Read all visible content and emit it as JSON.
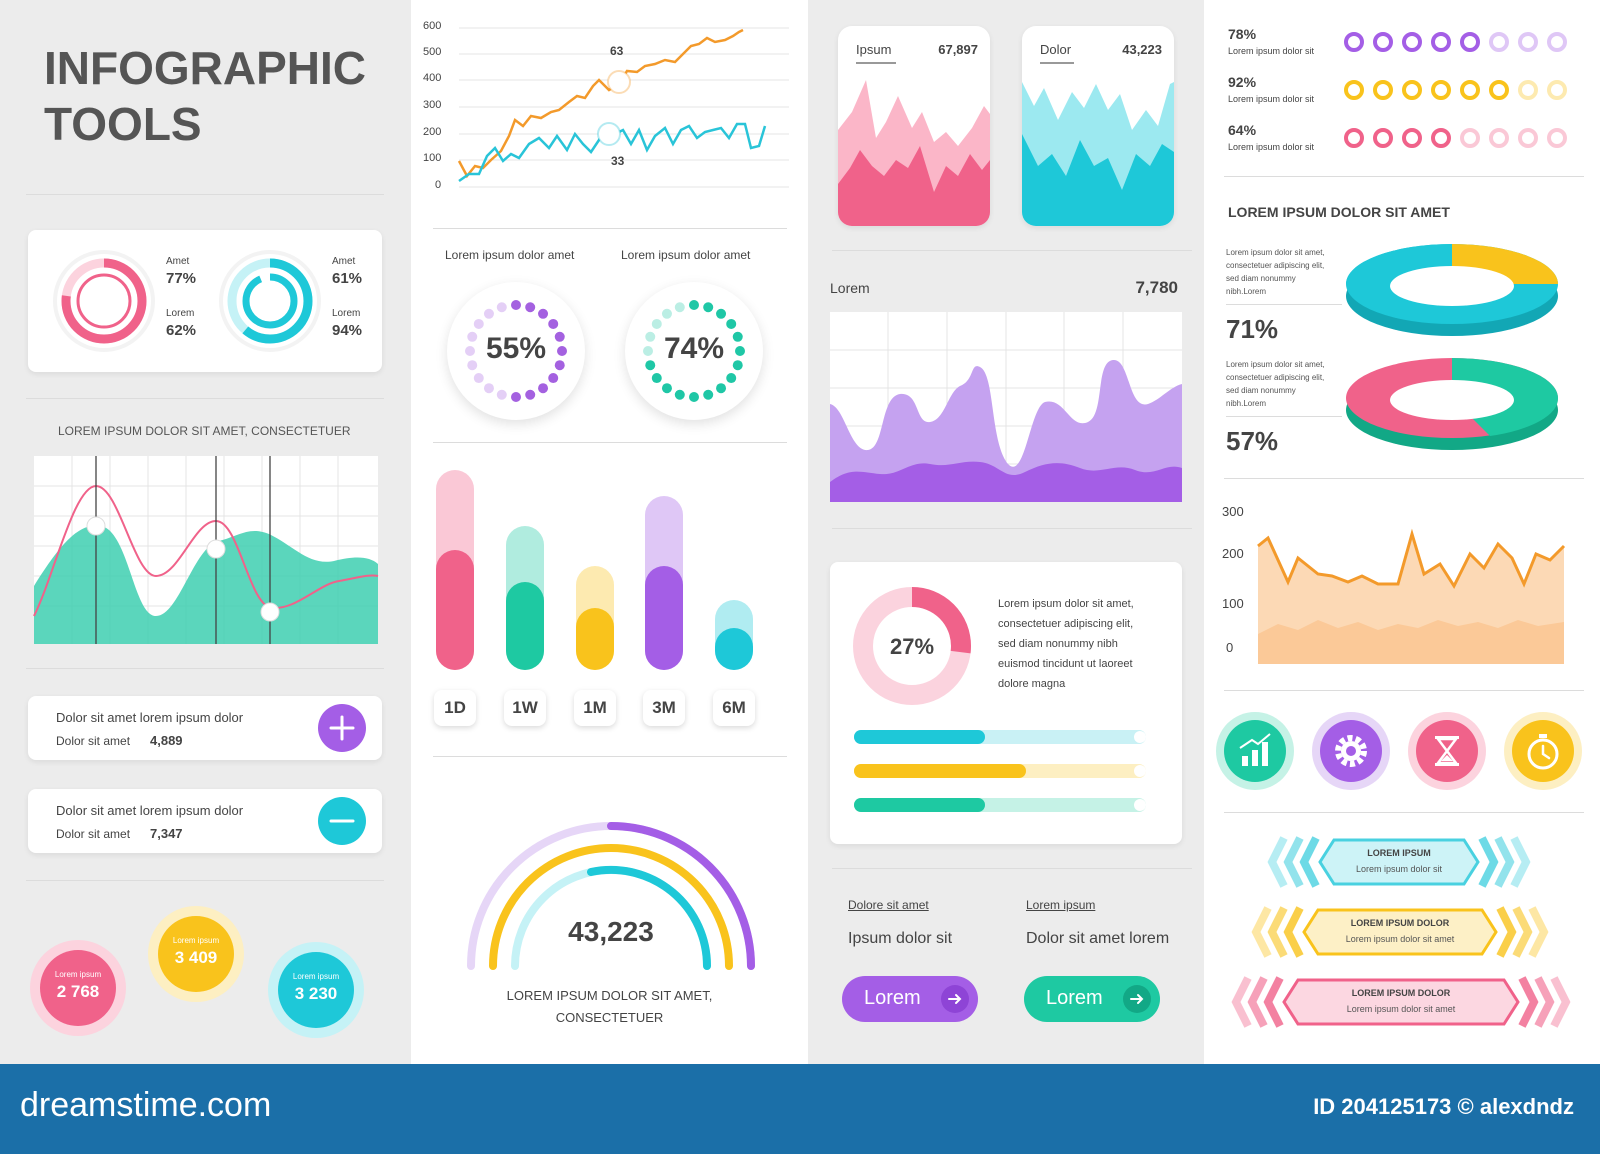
{
  "title": {
    "line1": "INFOGRAPHIC",
    "line2": "TOOLS"
  },
  "donut_pair": {
    "pink": {
      "top_label": "Amet",
      "top_value": "77%",
      "bottom_label": "Lorem",
      "bottom_value": "62%"
    },
    "cyan": {
      "top_label": "Amet",
      "top_value": "61%",
      "bottom_label": "Lorem",
      "bottom_value": "94%"
    }
  },
  "wave_chart": {
    "title": "LOREM IPSUM DOLOR SIT AMET, CONSECTETUER"
  },
  "stat_rows": [
    {
      "title": "Dolor sit amet lorem ipsum dolor",
      "label": "Dolor sit amet",
      "value": "4,889",
      "action": "plus"
    },
    {
      "title": "Dolor sit amet lorem ipsum dolor",
      "label": "Dolor sit amet",
      "value": "7,347",
      "action": "minus"
    }
  ],
  "bubbles": [
    {
      "label": "Lorem ipsum",
      "value": "2 768",
      "color": "#f0507e"
    },
    {
      "label": "Lorem ipsum",
      "value": "3 409",
      "color": "#f9c31c"
    },
    {
      "label": "Lorem ipsum",
      "value": "3 230",
      "color": "#1ec8d8"
    }
  ],
  "line_chart": {
    "y_ticks": [
      "600",
      "500",
      "400",
      "300",
      "200",
      "100",
      "0"
    ],
    "orange_label": "63",
    "cyan_label": "33",
    "colors": {
      "orange": "#f39a2b",
      "cyan": "#29c4d8"
    }
  },
  "dot_rings": [
    {
      "caption": "Lorem ipsum dolor amet",
      "value": "55%",
      "color": "#a461e0"
    },
    {
      "caption": "Lorem ipsum dolor amet",
      "value": "74%",
      "color": "#1fc7a6"
    }
  ],
  "bar_chart": {
    "tabs": [
      "1D",
      "1W",
      "1M",
      "3M",
      "6M"
    ],
    "values": [
      0.6,
      0.44,
      0.31,
      0.52,
      0.21
    ],
    "backs": [
      1.0,
      0.72,
      0.52,
      0.87,
      0.35
    ],
    "colors": [
      "#f0628a",
      "#1ec9a2",
      "#f9c31c",
      "#a45ee6",
      "#1ec8d8"
    ]
  },
  "gauge": {
    "value": "43,223",
    "caption_line1": "LOREM IPSUM DOLOR SIT AMET,",
    "caption_line2": "CONSECTETUER"
  },
  "mini_cards": [
    {
      "label": "Ipsum",
      "value": "67,897",
      "color": "#f0628a"
    },
    {
      "label": "Dolor",
      "value": "43,223",
      "color": "#1ec8d8"
    }
  ],
  "area_chart": {
    "label": "Lorem",
    "value": "7,780"
  },
  "pie_card": {
    "value": "27%",
    "text": [
      "Lorem ipsum dolor sit amet,",
      "consectetuer adipiscing elit,",
      "sed diam nonummy nibh",
      "euismod tincidunt ut laoreet",
      "dolore magna"
    ],
    "progress": [
      {
        "value": 0.45,
        "color": "#1ec8d8",
        "track": "#c9f1f5"
      },
      {
        "value": 0.59,
        "color": "#f9c31c",
        "track": "#fdefc2"
      },
      {
        "value": 0.45,
        "color": "#1ec9a2",
        "track": "#c5f2e6"
      }
    ]
  },
  "buttons_block": [
    {
      "caption": "Dolore sit amet",
      "text": "Ipsum dolor sit",
      "button": "Lorem",
      "color": "#a45ee6"
    },
    {
      "caption": "Lorem ipsum",
      "text": "Dolor sit amet lorem",
      "button": "Lorem",
      "color": "#1ec9a2"
    }
  ],
  "dot_rows": [
    {
      "value": "78%",
      "label": "Lorem ipsum dolor sit",
      "color": "#a45ee6",
      "filled": 5
    },
    {
      "value": "92%",
      "label": "Lorem ipsum dolor sit",
      "color": "#f9c31c",
      "filled": 6
    },
    {
      "value": "64%",
      "label": "Lorem ipsum dolor sit",
      "color": "#f0628a",
      "filled": 4
    }
  ],
  "rings_3d": {
    "heading": "LOREM IPSUM DOLOR SIT AMET",
    "items": [
      {
        "text": [
          "Lorem ipsum dolor sit amet,",
          "consectetuer adipiscing elit,",
          "sed diam nonummy",
          "nibh.Lorem"
        ],
        "value": "71%"
      },
      {
        "text": [
          "Lorem ipsum dolor sit amet,",
          "consectetuer adipiscing elit,",
          "sed diam nonummy",
          "nibh.Lorem"
        ],
        "value": "57%"
      }
    ]
  },
  "zigzag_chart": {
    "y_ticks": [
      "300",
      "200",
      "100",
      "0"
    ]
  },
  "icon_buttons": [
    {
      "icon": "bar-chart-icon",
      "color": "#1ec9a2"
    },
    {
      "icon": "gear-icon",
      "color": "#a45ee6"
    },
    {
      "icon": "hourglass-icon",
      "color": "#f0628a"
    },
    {
      "icon": "stopwatch-icon",
      "color": "#f9c31c"
    }
  ],
  "banners": [
    {
      "title": "LOREM IPSUM",
      "subtitle": "Lorem ipsum dolor sit",
      "color": "#49d1e0",
      "fill": "#cdf3f7"
    },
    {
      "title": "LOREM IPSUM DOLOR",
      "subtitle": "Lorem ipsum dolor sit amet",
      "color": "#f9c31c",
      "fill": "#fdf0c6"
    },
    {
      "title": "LOREM IPSUM DOLOR",
      "subtitle": "Lorem ipsum dolor sit amet",
      "color": "#f0628a",
      "fill": "#fcd7e1"
    }
  ],
  "footer": {
    "site": "dreamstime.com",
    "id": "ID 204125173 © alexdndz"
  }
}
